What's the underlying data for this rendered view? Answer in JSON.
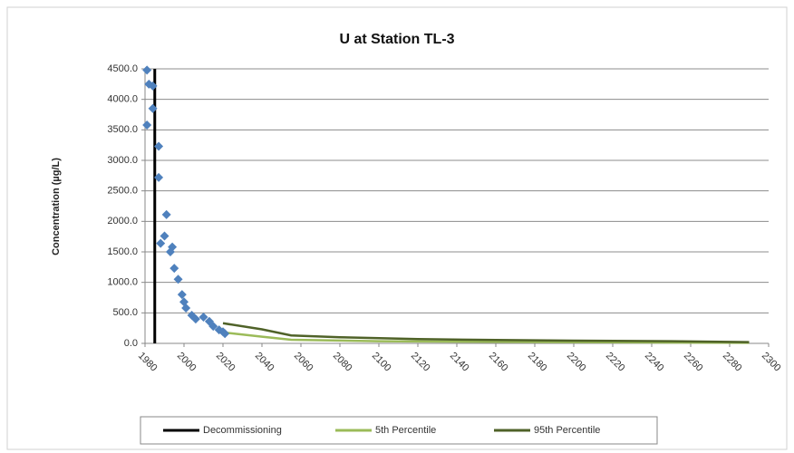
{
  "chart_data": {
    "type": "line",
    "title": "U at Station TL-3",
    "y_label": "Concentration (µg/L)",
    "xlim": [
      1980,
      2300
    ],
    "xticks": [
      1980,
      2000,
      2020,
      2040,
      2060,
      2080,
      2100,
      2120,
      2140,
      2160,
      2180,
      2200,
      2220,
      2240,
      2260,
      2280,
      2300
    ],
    "ylim": [
      0,
      4500
    ],
    "yticks": [
      {
        "value": 0,
        "label": "0.0"
      },
      {
        "value": 500,
        "label": "500.0"
      },
      {
        "value": 1000,
        "label": "1000.0"
      },
      {
        "value": 1500,
        "label": "1500.0"
      },
      {
        "value": 2000,
        "label": "2000.0"
      },
      {
        "value": 2500,
        "label": "2500.0"
      },
      {
        "value": 3000,
        "label": "3000.0"
      },
      {
        "value": 3500,
        "label": "3500.0"
      },
      {
        "value": 4000,
        "label": "4000.0"
      },
      {
        "value": 4500,
        "label": "4500.0"
      }
    ],
    "grid": true,
    "legend": "bottom",
    "points": {
      "type": "scatter",
      "color": "#4f81bd",
      "x": [
        1981,
        1982,
        1984,
        1984,
        1981,
        1987,
        1987,
        1991,
        1990,
        1988,
        1994,
        1993,
        1995,
        1997,
        1999,
        2000,
        2001,
        2004,
        2006,
        2010,
        2013,
        2015,
        2018,
        2020,
        2021
      ],
      "values": [
        4480,
        4250,
        4220,
        3850,
        3580,
        3230,
        2720,
        2110,
        1760,
        1640,
        1580,
        1500,
        1230,
        1050,
        800,
        680,
        580,
        460,
        400,
        430,
        360,
        280,
        220,
        190,
        160
      ]
    },
    "series": [
      {
        "name": "Decommissioning",
        "color": "#000000",
        "x": [
          1985,
          1985
        ],
        "values": [
          0,
          4500
        ]
      },
      {
        "name": "5th Percentile",
        "color": "#9bbb59",
        "x": [
          2020,
          2040,
          2055,
          2100,
          2200,
          2290
        ],
        "values": [
          180,
          110,
          60,
          35,
          20,
          10
        ]
      },
      {
        "name": "95th Percentile",
        "color": "#4f6228",
        "x": [
          2020,
          2040,
          2055,
          2080,
          2120,
          2160,
          2200,
          2250,
          2290
        ],
        "values": [
          330,
          230,
          130,
          100,
          70,
          55,
          45,
          35,
          20
        ]
      }
    ]
  }
}
